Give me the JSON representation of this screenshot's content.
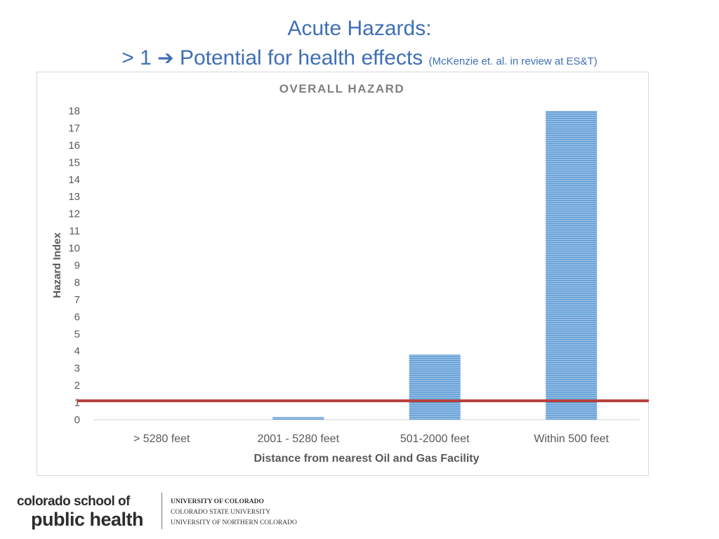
{
  "slide": {
    "title_line1": "Acute Hazards:",
    "title_line2_prefix": "> 1",
    "arrow_glyph": "➔",
    "title_line2_main": "Potential for health effects",
    "title_line2_note": "(McKenzie et. al. in review at ES&T)"
  },
  "colors": {
    "title": "#3f6fb5",
    "bar": "#5b9bd5",
    "threshold_line": "#b5403a",
    "axis_text": "#595959"
  },
  "chart_data": {
    "type": "bar",
    "title": "OVERALL HAZARD",
    "xlabel": "Distance from nearest Oil and Gas Facility",
    "ylabel": "Hazard Index",
    "categories": [
      "> 5280 feet",
      "2001 - 5280 feet",
      "501-2000 feet",
      "Within 500 feet"
    ],
    "values": [
      0,
      0.15,
      3.8,
      18
    ],
    "ylim": [
      0,
      18
    ],
    "yticks": [
      "0",
      "1",
      "2",
      "3",
      "4",
      "5",
      "6",
      "7",
      "8",
      "9",
      "10",
      "11",
      "12",
      "13",
      "14",
      "15",
      "16",
      "17",
      "18"
    ],
    "threshold": 1.1,
    "grid": false
  },
  "footer": {
    "school_line1": "colorado school of",
    "school_line2": "public health",
    "uni1": "UNIVERSITY OF COLORADO",
    "uni2": "COLORADO STATE UNIVERSITY",
    "uni3": "UNIVERSITY OF NORTHERN COLORADO"
  }
}
